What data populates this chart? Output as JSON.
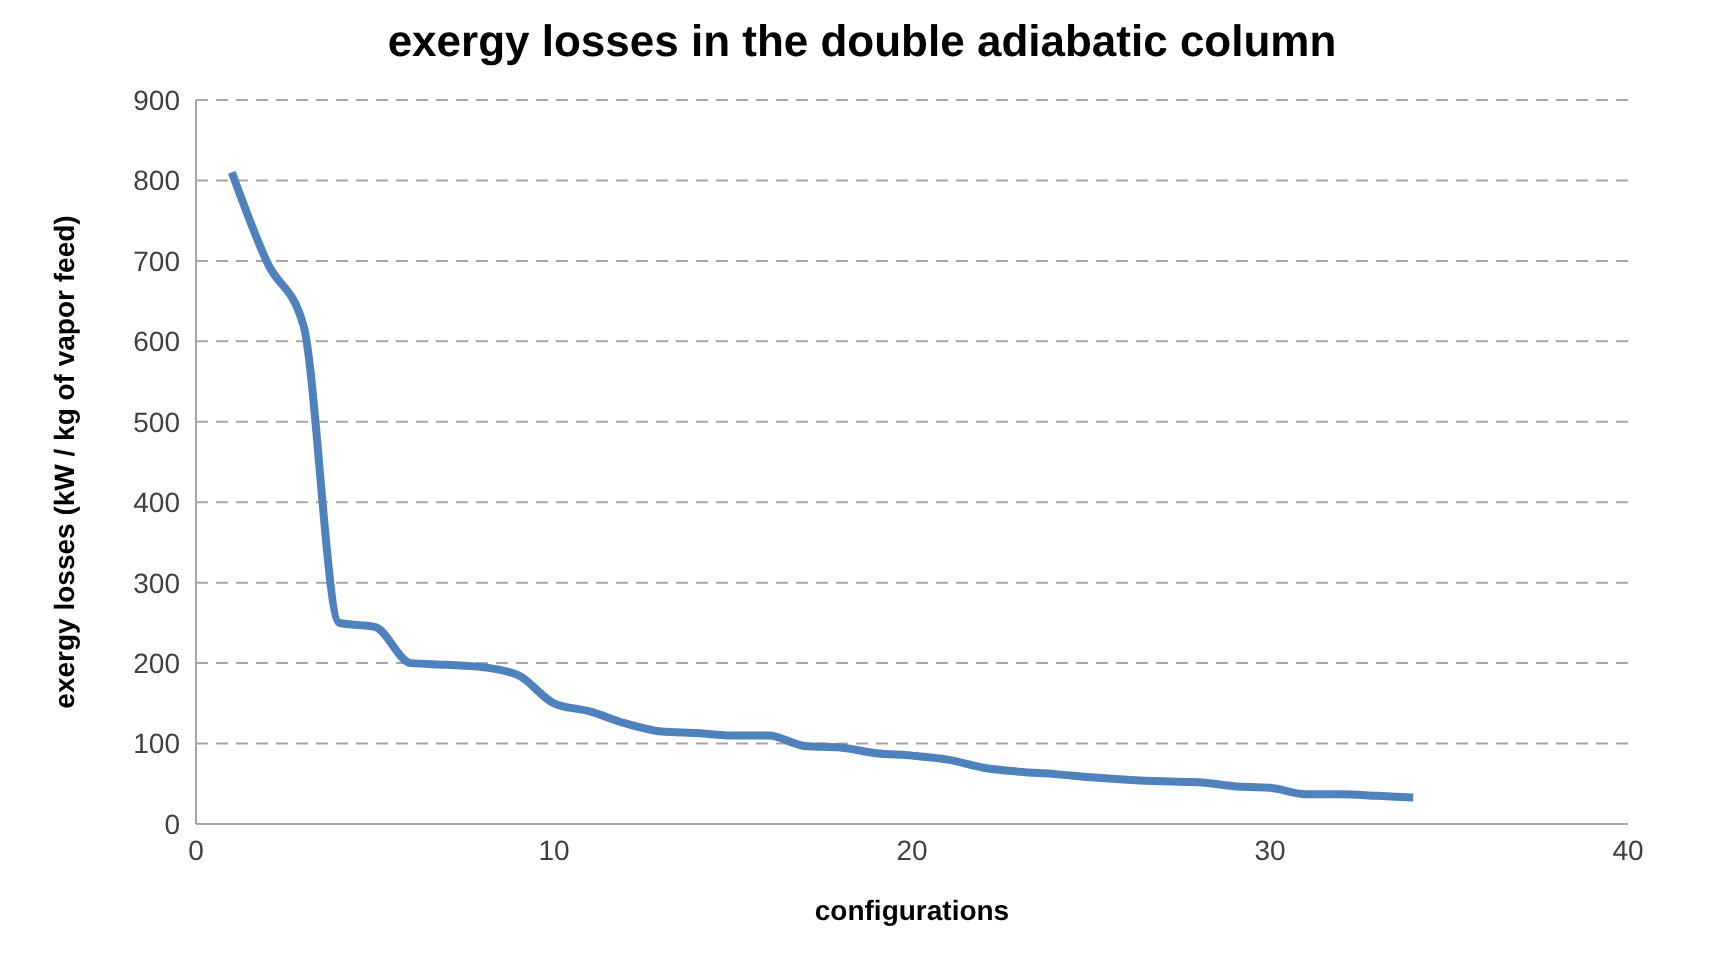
{
  "chart_data": {
    "type": "line",
    "title": "exergy losses in the double adiabatic column",
    "xlabel": "configurations",
    "ylabel": "exergy losses (kW / kg of vapor feed)",
    "x": [
      1,
      2,
      3,
      4,
      5,
      6,
      7,
      8,
      9,
      10,
      11,
      12,
      13,
      14,
      15,
      16,
      17,
      18,
      19,
      20,
      21,
      22,
      23,
      24,
      25,
      26,
      27,
      28,
      29,
      30,
      31,
      32,
      33,
      34
    ],
    "series": [
      {
        "color": "#4f81bd",
        "values": [
          810,
          697,
          620,
          250,
          245,
          200,
          198,
          195,
          185,
          150,
          140,
          125,
          115,
          113,
          110,
          110,
          97,
          95,
          88,
          85,
          80,
          70,
          65,
          62,
          58,
          55,
          53,
          52,
          47,
          45,
          37,
          37,
          35,
          33
        ]
      }
    ],
    "xlim": [
      0,
      40
    ],
    "xticks": [
      0,
      10,
      20,
      30,
      40
    ],
    "ylim": [
      0,
      900
    ],
    "yticks": [
      0,
      100,
      200,
      300,
      400,
      500,
      600,
      700,
      800,
      900
    ],
    "grid": "y",
    "legend": false,
    "marker": "none",
    "line_style": "solid"
  }
}
